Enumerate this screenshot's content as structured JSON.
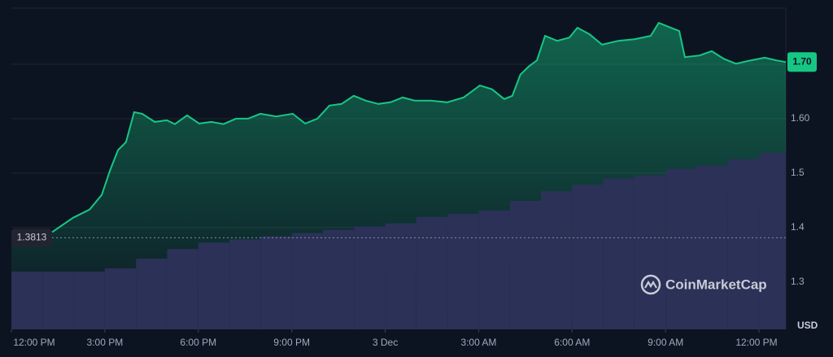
{
  "chart_data": {
    "type": "area",
    "currency": "USD",
    "watermark": "CoinMarketCap",
    "ylim": [
      1.213,
      1.803
    ],
    "yticks": [
      1.3,
      1.4,
      1.5,
      {
        "value": 1.6,
        "label": "1.60"
      },
      {
        "value": 1.7,
        "label": "1.70"
      }
    ],
    "y2lim": [
      0,
      100
    ],
    "xlim": [
      0,
      24.86
    ],
    "xticks": [
      {
        "value": 0,
        "label": "12:00 PM"
      },
      {
        "value": 3,
        "label": "3:00 PM"
      },
      {
        "value": 6,
        "label": "6:00 PM"
      },
      {
        "value": 9,
        "label": "9:00 PM"
      },
      {
        "value": 12,
        "label": "3 Dec"
      },
      {
        "value": 15,
        "label": "3:00 AM"
      },
      {
        "value": 18,
        "label": "6:00 AM"
      },
      {
        "value": 21,
        "label": "9:00 AM"
      },
      {
        "value": 24,
        "label": "12:00 PM"
      }
    ],
    "grid": true,
    "reference": {
      "value": 1.3813,
      "label": "1.3813"
    },
    "series": [
      {
        "color": "#16c784",
        "x": [
          0,
          0.68,
          1.33,
          1.98,
          2.51,
          2.9,
          3.16,
          3.42,
          3.68,
          3.94,
          4.2,
          4.6,
          4.99,
          5.25,
          5.64,
          6.03,
          6.42,
          6.81,
          7.21,
          7.6,
          7.99,
          8.51,
          9.03,
          9.43,
          9.82,
          10.21,
          10.6,
          10.99,
          11.38,
          11.78,
          12.17,
          12.56,
          12.95,
          13.47,
          13.99,
          14.52,
          15.04,
          15.43,
          15.82,
          16.08,
          16.34,
          16.61,
          16.87,
          17.13,
          17.52,
          17.91,
          18.17,
          18.56,
          18.96,
          19.48,
          20,
          20.52,
          20.78,
          21.17,
          21.44,
          21.62,
          22.09,
          22.48,
          22.87,
          23.26,
          23.66,
          24.18,
          24.57,
          24.86
        ],
        "values": [
          1.385,
          1.382,
          1.3925,
          1.418,
          1.433,
          1.46,
          1.504,
          1.542,
          1.557,
          1.612,
          1.609,
          1.594,
          1.597,
          1.59,
          1.606,
          1.591,
          1.594,
          1.59,
          1.6,
          1.6,
          1.609,
          1.604,
          1.609,
          1.591,
          1.6,
          1.624,
          1.627,
          1.642,
          1.633,
          1.627,
          1.63,
          1.639,
          1.633,
          1.633,
          1.63,
          1.639,
          1.661,
          1.654,
          1.636,
          1.642,
          1.681,
          1.696,
          1.707,
          1.752,
          1.743,
          1.749,
          1.767,
          1.755,
          1.736,
          1.743,
          1.746,
          1.752,
          1.776,
          1.767,
          1.761,
          1.713,
          1.716,
          1.724,
          1.71,
          1.701,
          1.706,
          1.712,
          1.707,
          1.704
        ]
      },
      {
        "color": "#2b3157",
        "axis": "y2",
        "x": [
          0,
          1,
          2,
          3,
          4,
          5,
          6,
          7,
          8,
          9,
          10,
          11,
          12,
          13,
          14,
          15,
          16,
          17,
          18,
          19,
          20,
          21,
          22,
          23,
          24
        ],
        "values": [
          18,
          18,
          18,
          19,
          22,
          25,
          27,
          28,
          29,
          30,
          31,
          32,
          33,
          35,
          36,
          37,
          40,
          43,
          45,
          47,
          48,
          50,
          51,
          53,
          55
        ]
      }
    ],
    "last_price": {
      "value": 1.704,
      "label": "1.70"
    }
  }
}
